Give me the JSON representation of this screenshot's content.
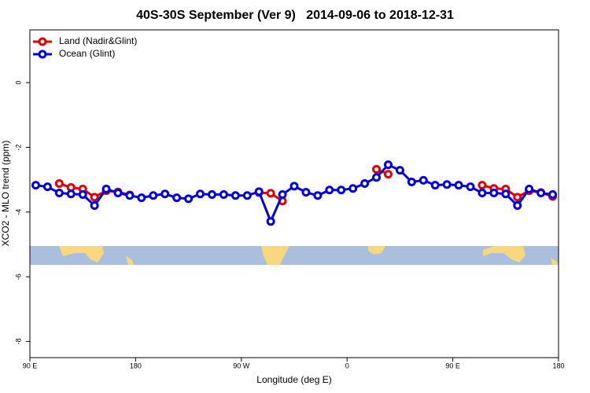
{
  "chart_data": {
    "type": "line",
    "title": "40S-30S September (Ver 9)   2014-09-06 to 2018-12-31",
    "xlabel": "Longitude (deg E)",
    "ylabel": "XCO2 - MLO trend (ppm)",
    "x": [
      95,
      105,
      115,
      125,
      135,
      145,
      155,
      165,
      175,
      185,
      195,
      205,
      215,
      225,
      235,
      245,
      255,
      265,
      275,
      285,
      295,
      305,
      315,
      325,
      335,
      345,
      355,
      365,
      375,
      385,
      395,
      405,
      415,
      425,
      435,
      445,
      455,
      465,
      475,
      485,
      495,
      505,
      515,
      525,
      535
    ],
    "series": [
      {
        "name": "Land (Nadir&Glint)",
        "color": "#e00000",
        "values": [
          null,
          null,
          -3.12,
          -3.24,
          -3.29,
          -3.54,
          -3.34,
          -3.38,
          -3.47,
          null,
          null,
          null,
          null,
          null,
          null,
          null,
          null,
          null,
          null,
          -3.4,
          -3.42,
          -3.66,
          null,
          null,
          null,
          null,
          null,
          null,
          null,
          -2.68,
          -2.83,
          null,
          null,
          null,
          null,
          null,
          null,
          null,
          -3.17,
          -3.27,
          -3.29,
          -3.54,
          -3.34,
          -3.4,
          -3.52
        ]
      },
      {
        "name": "Ocean (Glint)",
        "color": "#0000e0",
        "values": [
          -3.17,
          -3.22,
          -3.41,
          -3.44,
          -3.46,
          -3.8,
          -3.29,
          -3.41,
          -3.49,
          -3.56,
          -3.49,
          -3.44,
          -3.56,
          -3.59,
          -3.44,
          -3.46,
          -3.46,
          -3.49,
          -3.49,
          -3.37,
          -4.29,
          -3.46,
          -3.2,
          -3.39,
          -3.49,
          -3.32,
          -3.32,
          -3.27,
          -3.12,
          -2.93,
          -2.54,
          -2.71,
          -3.07,
          -3.02,
          -3.17,
          -3.15,
          -3.17,
          -3.22,
          -3.41,
          -3.41,
          -3.44,
          -3.8,
          -3.29,
          -3.41,
          -3.46
        ]
      }
    ],
    "xlim": [
      90,
      540
    ],
    "xticks": [
      {
        "value": 90,
        "label": "90 E"
      },
      {
        "value": 180,
        "label": "180"
      },
      {
        "value": 270,
        "label": "90 W"
      },
      {
        "value": 360,
        "label": "0"
      },
      {
        "value": 450,
        "label": "90 E"
      },
      {
        "value": 540,
        "label": "180"
      }
    ],
    "ylim": [
      -8.5,
      1.63
    ],
    "yticks": [
      0,
      -2,
      -4,
      -6,
      -8
    ],
    "legend": "top-left"
  }
}
